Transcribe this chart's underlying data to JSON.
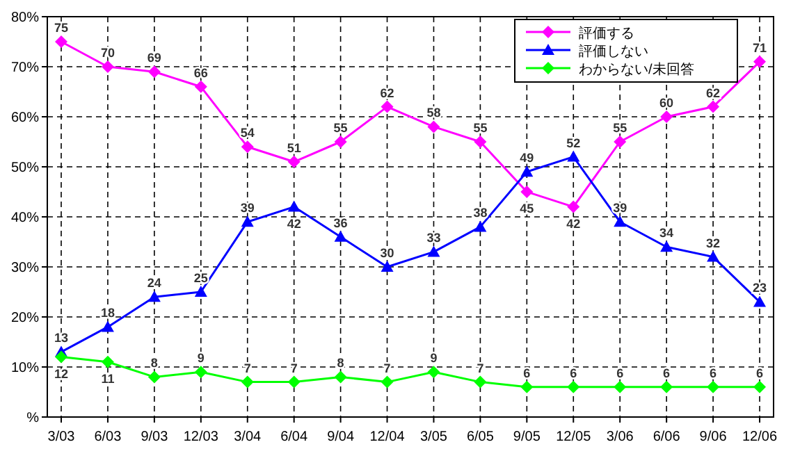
{
  "chart_data": {
    "type": "line",
    "categories": [
      "3/03",
      "6/03",
      "9/03",
      "12/03",
      "3/04",
      "6/04",
      "9/04",
      "12/04",
      "3/05",
      "6/05",
      "9/05",
      "12/05",
      "3/06",
      "6/06",
      "9/06",
      "12/06"
    ],
    "series": [
      {
        "name": "評価する",
        "color": "#ff00ff",
        "marker": "diamond",
        "values": [
          75,
          70,
          69,
          66,
          54,
          51,
          55,
          62,
          58,
          55,
          45,
          42,
          55,
          60,
          62,
          71
        ]
      },
      {
        "name": "評価しない",
        "color": "#0000ff",
        "marker": "triangle",
        "values": [
          13,
          18,
          24,
          25,
          39,
          42,
          36,
          30,
          33,
          38,
          49,
          52,
          39,
          34,
          32,
          23
        ]
      },
      {
        "name": "わからない/未回答",
        "color": "#00ff00",
        "marker": "diamond",
        "values": [
          12,
          11,
          8,
          9,
          7,
          7,
          8,
          7,
          9,
          7,
          6,
          6,
          6,
          6,
          6,
          6
        ]
      }
    ],
    "ylim": [
      0,
      80
    ],
    "yticks": [
      {
        "value": 0,
        "label": "%"
      },
      {
        "value": 10,
        "label": "10%"
      },
      {
        "value": 20,
        "label": "20%"
      },
      {
        "value": 30,
        "label": "30%"
      },
      {
        "value": 40,
        "label": "40%"
      },
      {
        "value": 50,
        "label": "50%"
      },
      {
        "value": 60,
        "label": "60%"
      },
      {
        "value": 70,
        "label": "70%"
      },
      {
        "value": 80,
        "label": "80%"
      }
    ],
    "grid": true,
    "line_style": "solid",
    "legend": "top right",
    "data_labels": true
  }
}
